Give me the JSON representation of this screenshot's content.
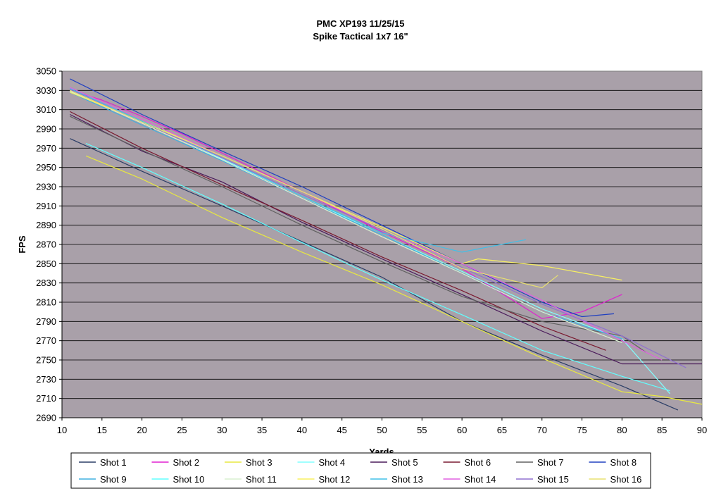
{
  "chart_data": {
    "type": "line",
    "title": "PMC XP193 11/25/15",
    "subtitle": "Spike Tactical 1x7 16\"",
    "xlabel": "Yards",
    "ylabel": "FPS",
    "xlim": [
      10,
      90
    ],
    "ylim": [
      2690,
      3050
    ],
    "x_ticks": [
      10,
      15,
      20,
      25,
      30,
      35,
      40,
      45,
      50,
      55,
      60,
      65,
      70,
      75,
      80,
      85,
      90
    ],
    "y_ticks": [
      2690,
      2710,
      2730,
      2750,
      2770,
      2790,
      2810,
      2830,
      2850,
      2870,
      2890,
      2910,
      2930,
      2950,
      2970,
      2990,
      3010,
      3030,
      3050
    ],
    "grid": "horizontal",
    "plot_background": "#a9a0a9",
    "legend_position": "bottom",
    "series": [
      {
        "name": "Shot 1",
        "color": "#2a3d66",
        "x": [
          11,
          20,
          30,
          40,
          50,
          60,
          70,
          80,
          87
        ],
        "y": [
          2980,
          2946,
          2910,
          2873,
          2836,
          2790,
          2755,
          2723,
          2698
        ]
      },
      {
        "name": "Shot 2",
        "color": "#e020d0",
        "x": [
          11,
          15,
          20,
          25,
          30,
          40,
          50,
          60,
          70,
          75,
          80
        ],
        "y": [
          3030,
          3020,
          3003,
          2985,
          2965,
          2925,
          2883,
          2845,
          2793,
          2800,
          2818
        ]
      },
      {
        "name": "Shot 3",
        "color": "#e8e840",
        "x": [
          13,
          20,
          30,
          40,
          50,
          60,
          70,
          80,
          85,
          90
        ],
        "y": [
          2962,
          2938,
          2898,
          2862,
          2828,
          2790,
          2752,
          2717,
          2712,
          2704
        ]
      },
      {
        "name": "Shot 4",
        "color": "#80ffff",
        "x": [
          11,
          20,
          30,
          40,
          50,
          60,
          70,
          80,
          86
        ],
        "y": [
          3030,
          2998,
          2959,
          2920,
          2880,
          2842,
          2803,
          2772,
          2715
        ]
      },
      {
        "name": "Shot 5",
        "color": "#4a1a5a",
        "x": [
          11,
          20,
          30,
          40,
          50,
          60,
          70,
          80,
          90
        ],
        "y": [
          3005,
          2967,
          2935,
          2893,
          2855,
          2818,
          2780,
          2746,
          2746
        ]
      },
      {
        "name": "Shot 6",
        "color": "#7a1a30",
        "x": [
          11,
          20,
          30,
          40,
          50,
          60,
          70,
          78
        ],
        "y": [
          3008,
          2970,
          2932,
          2895,
          2857,
          2822,
          2785,
          2760
        ]
      },
      {
        "name": "Shot 7",
        "color": "#606060",
        "x": [
          11,
          20,
          30,
          40,
          50,
          60,
          70,
          80,
          83
        ],
        "y": [
          3003,
          2968,
          2930,
          2890,
          2852,
          2816,
          2790,
          2775,
          2758
        ]
      },
      {
        "name": "Shot 8",
        "color": "#2040c0",
        "x": [
          11,
          20,
          30,
          40,
          50,
          60,
          70,
          75,
          79
        ],
        "y": [
          3042,
          3005,
          2967,
          2930,
          2890,
          2850,
          2810,
          2795,
          2798
        ]
      },
      {
        "name": "Shot 9",
        "color": "#40b0e0",
        "x": [
          11,
          20,
          30,
          40,
          50,
          60,
          70,
          80
        ],
        "y": [
          3028,
          2994,
          2957,
          2918,
          2880,
          2840,
          2800,
          2772
        ]
      },
      {
        "name": "Shot 10",
        "color": "#60ffff",
        "x": [
          13,
          20,
          30,
          40,
          50,
          60,
          70,
          80,
          86
        ],
        "y": [
          2975,
          2950,
          2912,
          2872,
          2833,
          2797,
          2760,
          2733,
          2718
        ]
      },
      {
        "name": "Shot 11",
        "color": "#d8f0d0",
        "x": [
          11,
          20,
          30,
          40,
          50,
          60,
          70,
          80
        ],
        "y": [
          3029,
          2996,
          2958,
          2918,
          2878,
          2840,
          2800,
          2768
        ]
      },
      {
        "name": "Shot 12",
        "color": "#f8f060",
        "x": [
          11,
          20,
          30,
          40,
          50,
          60,
          62,
          70,
          80
        ],
        "y": [
          3028,
          2998,
          2962,
          2925,
          2888,
          2850,
          2855,
          2848,
          2833
        ]
      },
      {
        "name": "Shot 13",
        "color": "#40c0e8",
        "x": [
          11,
          20,
          30,
          40,
          50,
          60,
          68
        ],
        "y": [
          3032,
          2998,
          2960,
          2920,
          2882,
          2862,
          2875
        ]
      },
      {
        "name": "Shot 14",
        "color": "#e060e0",
        "x": [
          11,
          20,
          30,
          40,
          50,
          60,
          70,
          80,
          85
        ],
        "y": [
          3033,
          3000,
          2962,
          2925,
          2885,
          2850,
          2812,
          2770,
          2750
        ]
      },
      {
        "name": "Shot 15",
        "color": "#9070d0",
        "x": [
          11,
          20,
          30,
          40,
          50,
          60,
          70,
          80,
          88
        ],
        "y": [
          3031,
          2997,
          2960,
          2922,
          2885,
          2846,
          2808,
          2775,
          2742
        ]
      },
      {
        "name": "Shot 16",
        "color": "#e8e070",
        "x": [
          11,
          20,
          30,
          40,
          50,
          60,
          70,
          72
        ],
        "y": [
          3030,
          2997,
          2962,
          2925,
          2886,
          2845,
          2825,
          2838
        ]
      }
    ]
  }
}
